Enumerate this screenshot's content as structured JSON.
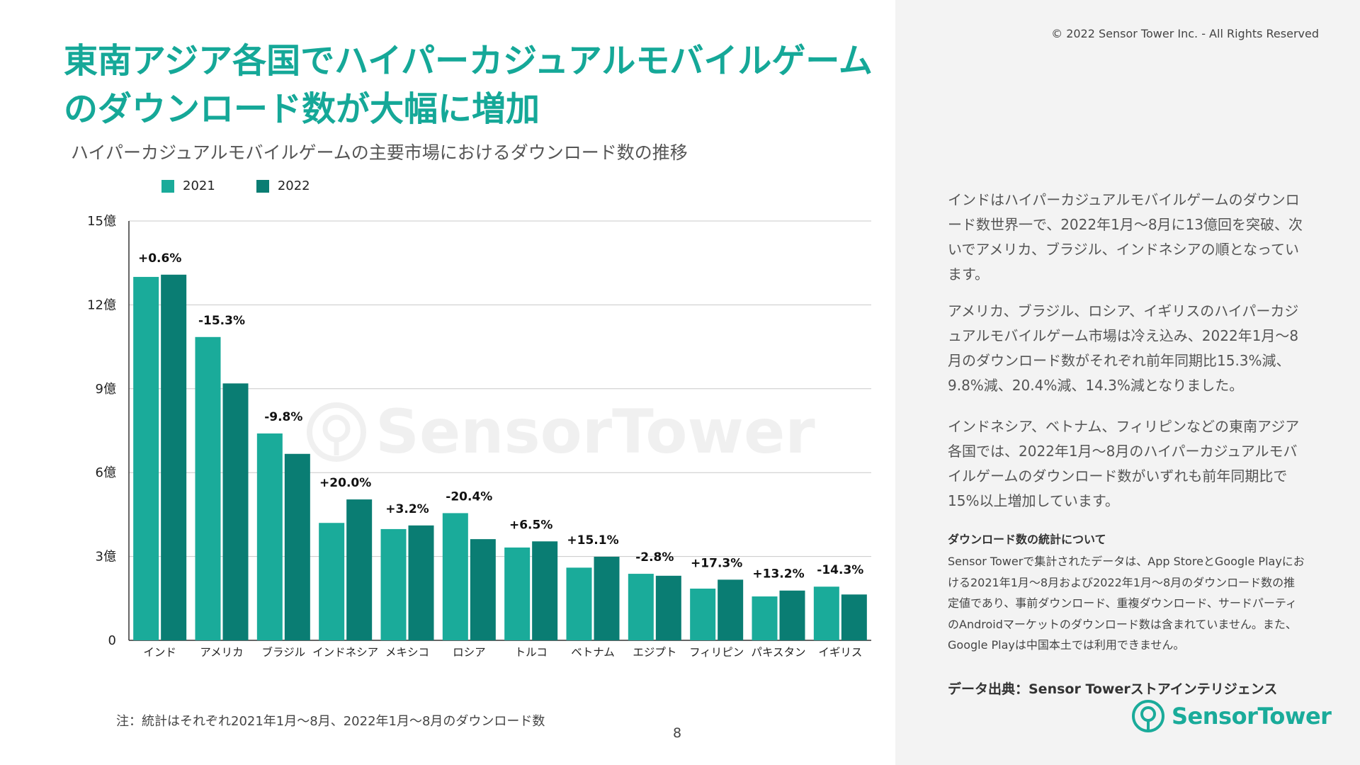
{
  "title": "東南アジア各国でハイパーカジュアルモバイルゲームのダウンロード数が大幅に増加",
  "copyright": "© 2022 Sensor Tower Inc. - All Rights Reserved",
  "chart_data": {
    "type": "bar",
    "title": "ハイパーカジュアルモバイルゲームの主要市場におけるダウンロード数の推移",
    "categories": [
      "インド",
      "アメリカ",
      "ブラジル",
      "インドネシア",
      "メキシコ",
      "ロシア",
      "トルコ",
      "ベトナム",
      "エジプト",
      "フィリピン",
      "パキスタン",
      "イギリス"
    ],
    "series": [
      {
        "name": "2021",
        "color": "#1aab9a",
        "values": [
          13.0,
          10.85,
          7.4,
          4.2,
          3.98,
          4.55,
          3.32,
          2.6,
          2.38,
          1.85,
          1.57,
          1.92
        ]
      },
      {
        "name": "2022",
        "color": "#0a7d73",
        "values": [
          13.08,
          9.19,
          6.67,
          5.04,
          4.11,
          3.62,
          3.54,
          2.99,
          2.31,
          2.17,
          1.78,
          1.64
        ]
      }
    ],
    "change_labels": [
      "+0.6%",
      "-15.3%",
      "-9.8%",
      "+20.0%",
      "+3.2%",
      "-20.4%",
      "+6.5%",
      "+15.1%",
      "-2.8%",
      "+17.3%",
      "+13.2%",
      "-14.3%"
    ],
    "yticks": [
      {
        "value": 0,
        "label": "0"
      },
      {
        "value": 3,
        "label": "3億"
      },
      {
        "value": 6,
        "label": "6億"
      },
      {
        "value": 9,
        "label": "9億"
      },
      {
        "value": 12,
        "label": "12億"
      },
      {
        "value": 15,
        "label": "15億"
      }
    ],
    "ylim": [
      0,
      15
    ],
    "grid": true,
    "legend_position": "top-left"
  },
  "watermark": "SensorTower",
  "note": "注：統計はそれぞれ2021年1月〜8月、2022年1月〜8月のダウンロード数",
  "page_number": "8",
  "paragraphs": [
    "インドはハイパーカジュアルモバイルゲームのダウンロード数世界一で、2022年1月〜8月に13億回を突破、次いでアメリカ、ブラジル、インドネシアの順となっています。",
    "アメリカ、ブラジル、ロシア、イギリスのハイパーカジュアルモバイルゲーム市場は冷え込み、2022年1月〜8月のダウンロード数がそれぞれ前年同期比15.3%減、9.8%減、20.4%減、14.3%減となりました。",
    "インドネシア、ベトナム、フィリピンなどの東南アジア各国では、2022年1月〜8月のハイパーカジュアルモバイルゲームのダウンロード数がいずれも前年同期比で15%以上増加しています。"
  ],
  "stats_title": "ダウンロード数の統計について",
  "stats_text": "Sensor Towerで集計されたデータは、App StoreとGoogle Playにおける2021年1月〜8月および2022年1月〜8月のダウンロード数の推定値であり、事前ダウンロード、重複ダウンロード、サードパーティのAndroidマーケットのダウンロード数は含まれていません。また、Google Playは中国本土では利用できません。",
  "source": "データ出典：Sensor Towerストアインテリジェンス",
  "logo_text": "SensorTower",
  "colors": {
    "accent": "#15a898",
    "dark_teal": "#0a7d73",
    "panel_bg": "#f3f3f3"
  }
}
